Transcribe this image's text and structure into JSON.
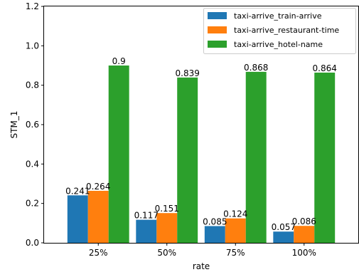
{
  "chart_data": {
    "type": "bar",
    "title": "",
    "xlabel": "rate",
    "ylabel": "STM_1",
    "categories": [
      "25%",
      "50%",
      "75%",
      "100%"
    ],
    "ylim": [
      0,
      1.2
    ],
    "yticks": [
      "0.0",
      "0.2",
      "0.4",
      "0.6",
      "0.8",
      "1.0",
      "1.2"
    ],
    "grid": false,
    "legend_position": "top-right",
    "series": [
      {
        "name": "taxi-arrive_train-arrive",
        "color": "#1f77b4",
        "values": [
          0.241,
          0.117,
          0.085,
          0.057
        ],
        "labels": [
          "0.241",
          "0.117",
          "0.085",
          "0.057"
        ]
      },
      {
        "name": "taxi-arrive_restaurant-time",
        "color": "#ff7f0e",
        "values": [
          0.264,
          0.151,
          0.124,
          0.086
        ],
        "labels": [
          "0.264",
          "0.151",
          "0.124",
          "0.086"
        ]
      },
      {
        "name": "taxi-arrive_hotel-name",
        "color": "#2ca02c",
        "values": [
          0.9,
          0.839,
          0.868,
          0.864
        ],
        "labels": [
          "0.9",
          "0.839",
          "0.868",
          "0.864"
        ]
      }
    ]
  }
}
